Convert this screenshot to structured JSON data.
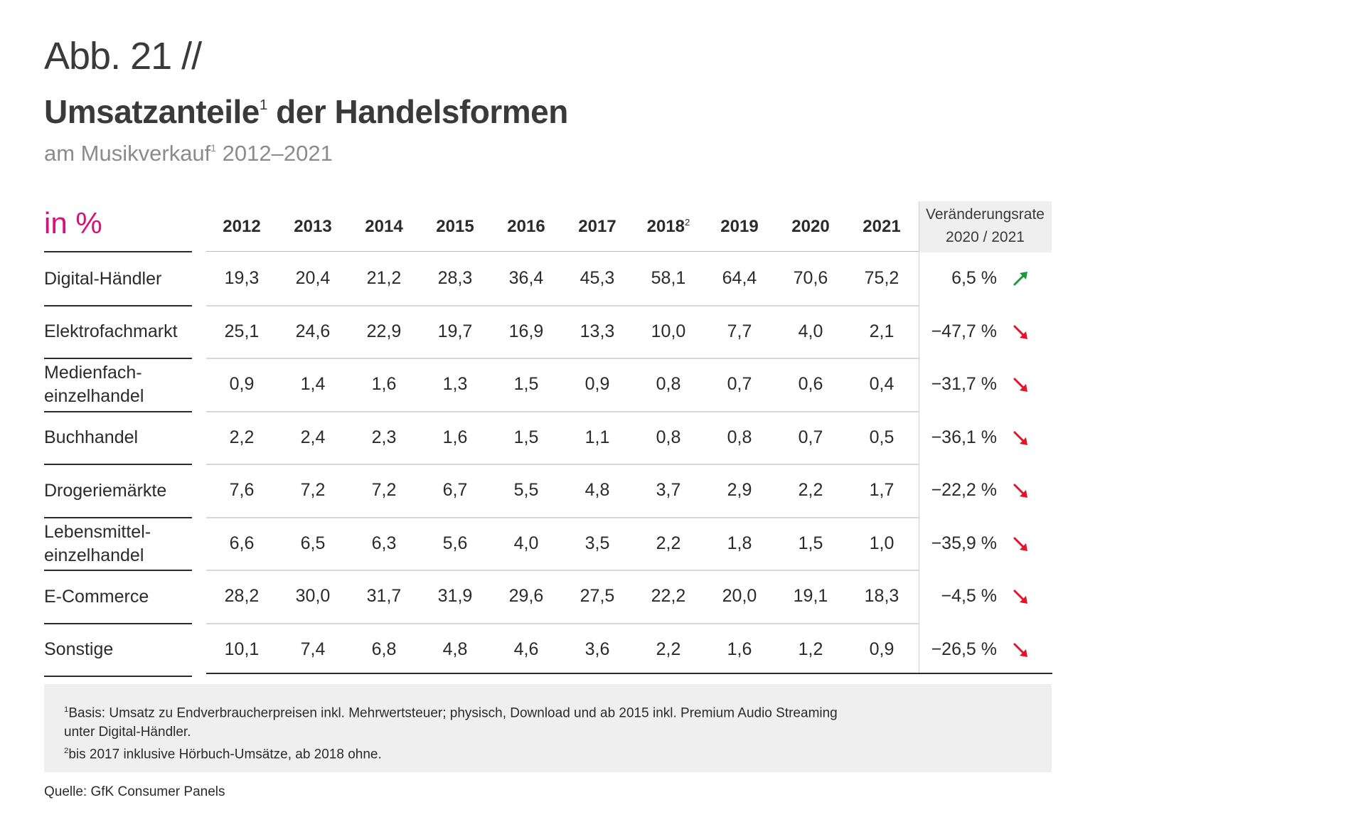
{
  "header": {
    "abb": "Abb. 21 //",
    "title": "Umsatzanteile",
    "title_sup": "1",
    "title_rest": " der Handelsformen",
    "subtitle": "am Musikverkauf",
    "subtitle_sup": "1",
    "subtitle_rest": " 2012–2021"
  },
  "colors": {
    "accent": "#d4127a",
    "up": "#1a9a3a",
    "down": "#e0142b"
  },
  "chart_data": {
    "type": "table",
    "unit_label": "in %",
    "columns": [
      "2012",
      "2013",
      "2014",
      "2015",
      "2016",
      "2017",
      "2018",
      "2019",
      "2020",
      "2021"
    ],
    "column_sups": [
      "",
      "",
      "",
      "",
      "",
      "",
      "2",
      "",
      "",
      ""
    ],
    "rate_header_line1": "Veränderungsrate",
    "rate_header_line2": "2020 / 2021",
    "rows": [
      {
        "label": [
          "Digital-Händler"
        ],
        "values": [
          "19,3",
          "20,4",
          "21,2",
          "28,3",
          "36,4",
          "45,3",
          "58,1",
          "64,4",
          "70,6",
          "75,2"
        ],
        "rate": "6,5 %",
        "trend": "up"
      },
      {
        "label": [
          "Elektrofachmarkt"
        ],
        "values": [
          "25,1",
          "24,6",
          "22,9",
          "19,7",
          "16,9",
          "13,3",
          "10,0",
          "7,7",
          "4,0",
          "2,1"
        ],
        "rate": "−47,7 %",
        "trend": "down"
      },
      {
        "label": [
          "Medienfach-",
          "einzelhandel"
        ],
        "values": [
          "0,9",
          "1,4",
          "1,6",
          "1,3",
          "1,5",
          "0,9",
          "0,8",
          "0,7",
          "0,6",
          "0,4"
        ],
        "rate": "−31,7 %",
        "trend": "down"
      },
      {
        "label": [
          "Buchhandel"
        ],
        "values": [
          "2,2",
          "2,4",
          "2,3",
          "1,6",
          "1,5",
          "1,1",
          "0,8",
          "0,8",
          "0,7",
          "0,5"
        ],
        "rate": "−36,1 %",
        "trend": "down"
      },
      {
        "label": [
          "Drogeriemärkte"
        ],
        "values": [
          "7,6",
          "7,2",
          "7,2",
          "6,7",
          "5,5",
          "4,8",
          "3,7",
          "2,9",
          "2,2",
          "1,7"
        ],
        "rate": "−22,2 %",
        "trend": "down"
      },
      {
        "label": [
          "Lebensmittel-",
          "einzelhandel"
        ],
        "values": [
          "6,6",
          "6,5",
          "6,3",
          "5,6",
          "4,0",
          "3,5",
          "2,2",
          "1,8",
          "1,5",
          "1,0"
        ],
        "rate": "−35,9 %",
        "trend": "down"
      },
      {
        "label": [
          "E-Commerce"
        ],
        "values": [
          "28,2",
          "30,0",
          "31,7",
          "31,9",
          "29,6",
          "27,5",
          "22,2",
          "20,0",
          "19,1",
          "18,3"
        ],
        "rate": "−4,5 %",
        "trend": "down"
      },
      {
        "label": [
          "Sonstige"
        ],
        "values": [
          "10,1",
          "7,4",
          "6,8",
          "4,8",
          "4,6",
          "3,6",
          "2,2",
          "1,6",
          "1,2",
          "0,9"
        ],
        "rate": "−26,5 %",
        "trend": "down"
      }
    ]
  },
  "footnotes": [
    {
      "sup": "1",
      "text": "Basis: Umsatz zu Endverbraucherpreisen inkl. Mehrwertsteuer; physisch, Download und ab 2015 inkl. Premium Audio Streaming"
    },
    {
      "sup": "",
      "text": " unter Digital-Händler."
    },
    {
      "sup": "2",
      "text": "bis 2017 inklusive Hörbuch-Umsätze, ab 2018 ohne."
    }
  ],
  "source": "Quelle: GfK Consumer Panels"
}
